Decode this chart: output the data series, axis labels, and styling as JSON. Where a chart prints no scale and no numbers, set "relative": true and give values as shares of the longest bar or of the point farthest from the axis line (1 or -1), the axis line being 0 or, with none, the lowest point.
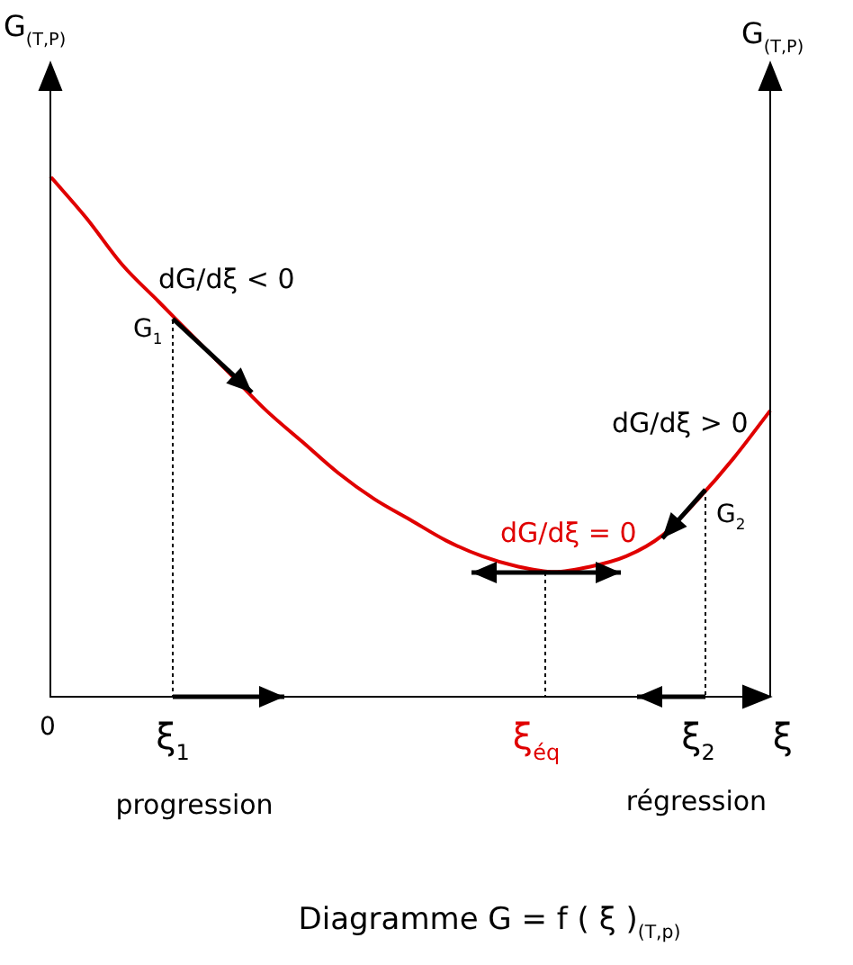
{
  "chart_data": {
    "type": "line",
    "title": "Diagramme G = f ( ξ )$_{(T,p)}$",
    "ylabel": "G$_{(T,P)}$",
    "y2label": "G$_{(T,P)}$",
    "categories": [
      null,
      null,
      null,
      null,
      null,
      null,
      null,
      null,
      null,
      null,
      null,
      null,
      null,
      null,
      null,
      null,
      null,
      null,
      null,
      null,
      null
    ],
    "series": [
      {
        "color": "#e00000",
        "values": [
          1,
          0.92,
          0.83,
          0.76,
          0.69,
          0.62,
          0.55,
          0.49,
          0.43,
          0.38,
          0.34,
          0.3,
          0.27,
          0.25,
          0.24,
          0.25,
          0.27,
          0.31,
          0.38,
          0.46,
          0.55
        ]
      }
    ],
    "relative": true,
    "legend": false,
    "marker": "none",
    "line_style": "solid",
    "annotations": [
      "dG/dξ < 0",
      "G$_{1}$",
      "dG/dξ > 0",
      "G$_{2}$",
      "dG/dξ = 0",
      "0",
      "ξ$_{1}$",
      "ξ$_{éq}$",
      "ξ$_{2}$",
      "ξ",
      "progression",
      "régression"
    ]
  }
}
